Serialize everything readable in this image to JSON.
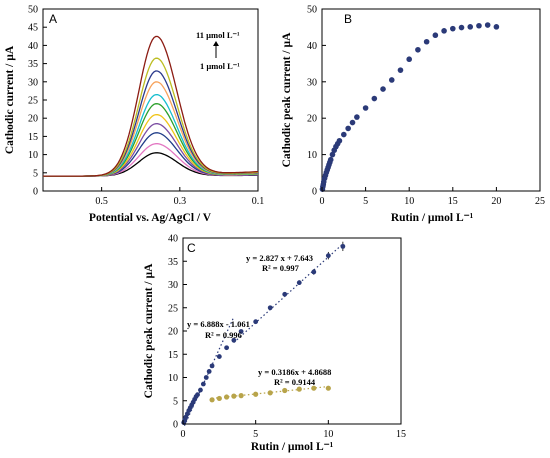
{
  "chart_data": [
    {
      "panel": "A",
      "type": "line",
      "xlabel": "Potential vs. Ag/AgCl / V",
      "ylabel": "Cathodic current / µA",
      "xlim": [
        0.1,
        0.65
      ],
      "x_reversed": true,
      "ylim": [
        0,
        50
      ],
      "x_ticks": [
        "0.5",
        "0.3",
        "0.1"
      ],
      "y_ticks": [
        "0",
        "5",
        "10",
        "15",
        "20",
        "25",
        "30",
        "35",
        "40",
        "45",
        "50"
      ],
      "annotation_top": "11 µmol L⁻¹",
      "annotation_bottom": "1 µmol L⁻¹",
      "peak_potential": 0.36,
      "baseline": 4.1,
      "series": [
        {
          "concentration": 1,
          "peak": 10.5,
          "color": "#000000"
        },
        {
          "concentration": 2,
          "peak": 13.0,
          "color": "#e377c2"
        },
        {
          "concentration": 3,
          "peak": 16.0,
          "color": "#1f3c88"
        },
        {
          "concentration": 4,
          "peak": 18.5,
          "color": "#7b4ea3"
        },
        {
          "concentration": 5,
          "peak": 21.0,
          "color": "#f0c419"
        },
        {
          "concentration": 6,
          "peak": 24.0,
          "color": "#2ca02c"
        },
        {
          "concentration": 7,
          "peak": 26.5,
          "color": "#17becf"
        },
        {
          "concentration": 8,
          "peak": 30.0,
          "color": "#f7a35c"
        },
        {
          "concentration": 9,
          "peak": 33.0,
          "color": "#2b3a8c"
        },
        {
          "concentration": 10,
          "peak": 36.5,
          "color": "#bcbd22"
        },
        {
          "concentration": 11,
          "peak": 42.5,
          "color": "#8c1c13"
        }
      ]
    },
    {
      "panel": "B",
      "type": "scatter",
      "xlabel": "Rutin / µmol L⁻¹",
      "ylabel": "Cathodic peak current / µA",
      "xlim": [
        0,
        25
      ],
      "ylim": [
        0,
        50
      ],
      "x_ticks": [
        "0",
        "5",
        "10",
        "15",
        "20",
        "25"
      ],
      "y_ticks": [
        "0",
        "10",
        "20",
        "30",
        "40",
        "50"
      ],
      "color": "#2b3a78",
      "x": [
        0.05,
        0.1,
        0.15,
        0.2,
        0.3,
        0.4,
        0.5,
        0.6,
        0.7,
        0.8,
        0.9,
        1.0,
        1.2,
        1.4,
        1.6,
        1.8,
        2.0,
        2.5,
        3.0,
        3.5,
        4.0,
        5.0,
        6.0,
        7.0,
        8.0,
        9.0,
        10.0,
        11.0,
        12.0,
        13.0,
        14.0,
        15.0,
        16.0,
        17.0,
        18.0,
        19.0,
        20.0
      ],
      "y": [
        0.5,
        1.2,
        1.8,
        2.5,
        3.5,
        4.3,
        5.1,
        5.8,
        6.5,
        7.2,
        7.9,
        8.6,
        10.0,
        11.2,
        12.2,
        13.0,
        13.8,
        15.5,
        17.2,
        18.8,
        20.3,
        22.8,
        25.4,
        28.0,
        30.5,
        33.2,
        36.2,
        38.8,
        41.0,
        42.8,
        44.0,
        44.6,
        44.9,
        45.1,
        45.4,
        45.6,
        45.1
      ]
    },
    {
      "panel": "C",
      "type": "scatter",
      "xlabel": "Rutin / µmol L⁻¹",
      "ylabel": "Cathodic peak current / µA",
      "xlim": [
        0,
        15
      ],
      "ylim": [
        0,
        40
      ],
      "x_ticks": [
        "0",
        "5",
        "10",
        "15"
      ],
      "y_ticks": [
        "0",
        "5",
        "10",
        "15",
        "20",
        "25",
        "30",
        "35",
        "40"
      ],
      "series": [
        {
          "color": "#2b3a78",
          "x": [
            0.05,
            0.1,
            0.15,
            0.2,
            0.3,
            0.4,
            0.5,
            0.6,
            0.7,
            0.8,
            0.9,
            1.0,
            1.2,
            1.4,
            1.6,
            1.8,
            2.0,
            2.5,
            3.0,
            3.5,
            4.0,
            5.0,
            6.0,
            7.0,
            8.0,
            9.0,
            10.0,
            11.0
          ],
          "y": [
            0.3,
            0.7,
            1.1,
            1.5,
            2.2,
            2.9,
            3.5,
            4.1,
            4.7,
            5.3,
            5.9,
            6.3,
            7.3,
            8.6,
            10.0,
            11.3,
            12.5,
            14.5,
            16.4,
            18.0,
            19.9,
            22.0,
            25.0,
            27.9,
            30.4,
            32.7,
            36.2,
            38.2
          ],
          "error": [
            0.2,
            0.2,
            0.2,
            0.2,
            0.2,
            0.2,
            0.2,
            0.2,
            0.2,
            0.2,
            0.2,
            0.2,
            0.3,
            0.3,
            0.3,
            0.3,
            0.3,
            0.3,
            0.3,
            0.3,
            0.3,
            0.4,
            0.4,
            0.4,
            0.5,
            0.6,
            0.8,
            1.0
          ]
        },
        {
          "color": "#b8a44a",
          "x": [
            2.0,
            2.5,
            3.0,
            3.5,
            4.0,
            5.0,
            6.0,
            7.0,
            8.0,
            9.0,
            10.0
          ],
          "y": [
            5.2,
            5.5,
            5.8,
            6.0,
            6.1,
            6.4,
            6.7,
            7.2,
            7.5,
            7.7,
            7.7
          ]
        }
      ],
      "fits": [
        {
          "equation": "y = 6.888x - 1.061",
          "r2": "R² = 0.996",
          "x_range": [
            0.1,
            3.5
          ],
          "slope": 6.888,
          "intercept": -1.061
        },
        {
          "equation": "y = 2.827 x + 7.643",
          "r2": "R² = 0.997",
          "x_range": [
            3.5,
            11.0
          ],
          "slope": 2.827,
          "intercept": 7.643
        },
        {
          "equation": "y = 0.3186x + 4.8688",
          "r2": "R² = 0.9144",
          "x_range": [
            2.0,
            10.0
          ],
          "slope": 0.3186,
          "intercept": 4.8688
        }
      ]
    }
  ]
}
